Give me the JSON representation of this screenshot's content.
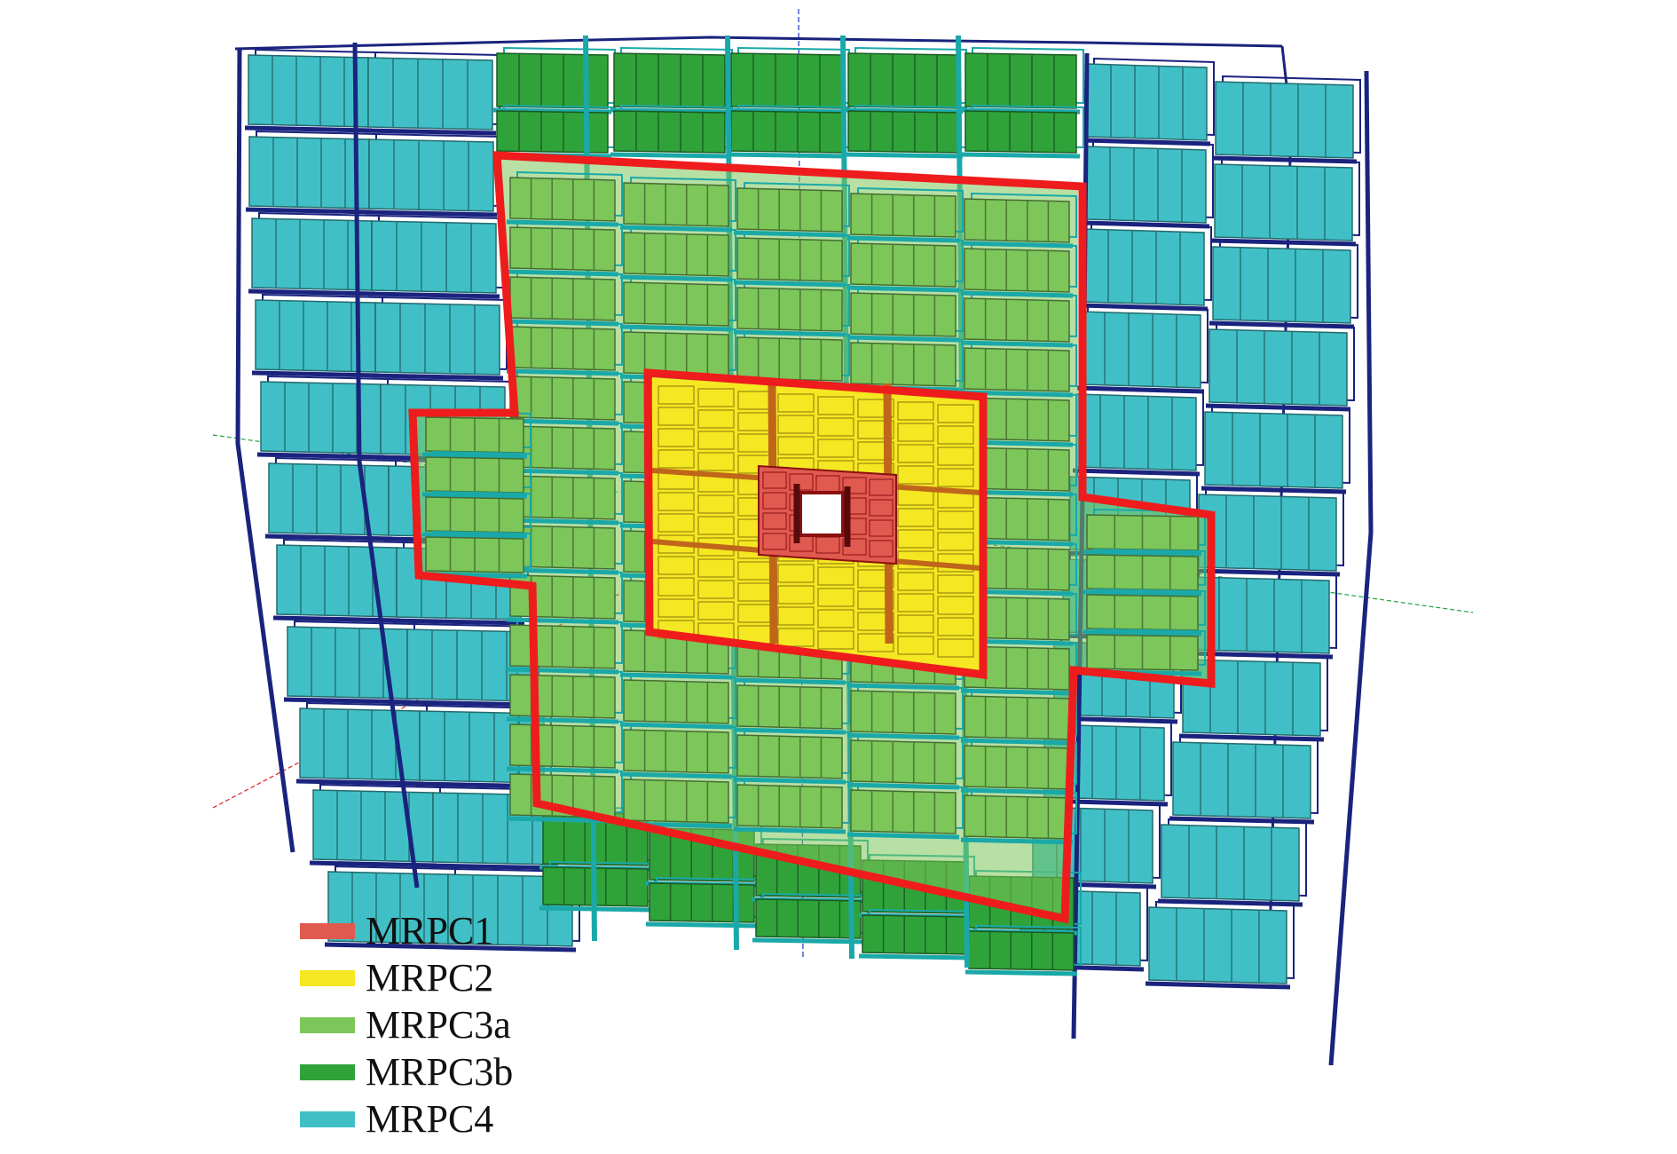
{
  "legend": {
    "items": [
      {
        "label": "MRPC1",
        "color": "#e05a50"
      },
      {
        "label": "MRPC2",
        "color": "#f5e722"
      },
      {
        "label": "MRPC3a",
        "color": "#7dc65a"
      },
      {
        "label": "MRPC3b",
        "color": "#2fa33a"
      },
      {
        "label": "MRPC4",
        "color": "#40c0c6"
      }
    ]
  },
  "colors": {
    "mrpc4_frame": "#1a237e",
    "mrpc3_frame": "#1aa8a8",
    "boundary": "#ee1c1c",
    "mrpc2_divider": "#c0661a",
    "mrpc1_frame": "#8a1010",
    "axis_x": "#e02020",
    "axis_y": "#20a040",
    "axis_z": "#2030d0"
  }
}
